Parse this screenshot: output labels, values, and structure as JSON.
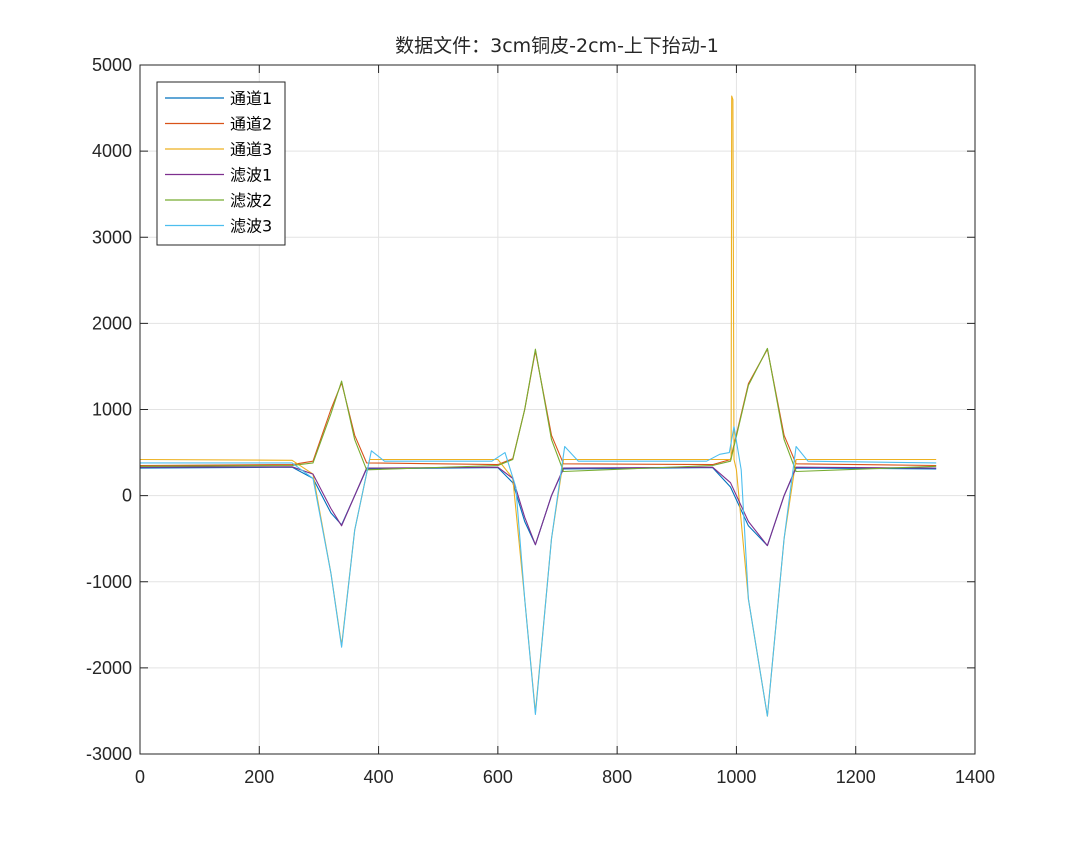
{
  "chart_data": {
    "type": "line",
    "title": "数据文件：3cm铜皮-2cm-上下抬动-1",
    "xlabel": "",
    "ylabel": "",
    "xlim": [
      0,
      1400
    ],
    "ylim": [
      -3000,
      5000
    ],
    "xticks": [
      0,
      200,
      400,
      600,
      800,
      1000,
      1200,
      1400
    ],
    "yticks": [
      -3000,
      -2000,
      -1000,
      0,
      1000,
      2000,
      3000,
      4000,
      5000
    ],
    "xtick_labels": [
      "0",
      "200",
      "400",
      "600",
      "800",
      "1000",
      "1200",
      "1400"
    ],
    "ytick_labels": [
      "-3000",
      "-2000",
      "-1000",
      "0",
      "1000",
      "2000",
      "3000",
      "4000",
      "5000"
    ],
    "grid": true,
    "legend_position": "top-left",
    "series": [
      {
        "name": "通道1",
        "color": "#0072BD",
        "x": [
          0,
          255,
          290,
          320,
          338,
          360,
          380,
          600,
          625,
          645,
          663,
          690,
          710,
          960,
          990,
          1020,
          1052,
          1080,
          1100,
          1335
        ],
        "y": [
          320,
          330,
          200,
          -200,
          -340,
          0,
          310,
          325,
          150,
          -300,
          -570,
          0,
          310,
          325,
          100,
          -350,
          -580,
          0,
          320,
          310
        ]
      },
      {
        "name": "通道2",
        "color": "#D95319",
        "x": [
          0,
          255,
          290,
          320,
          338,
          360,
          380,
          600,
          625,
          645,
          663,
          690,
          710,
          960,
          990,
          1020,
          1052,
          1080,
          1100,
          1335
        ],
        "y": [
          350,
          360,
          400,
          1000,
          1310,
          700,
          380,
          360,
          430,
          1000,
          1680,
          700,
          370,
          360,
          420,
          1300,
          1700,
          700,
          370,
          350
        ]
      },
      {
        "name": "通道3",
        "color": "#EDB120",
        "x": [
          0,
          255,
          290,
          320,
          338,
          360,
          385,
          600,
          625,
          645,
          663,
          690,
          710,
          985,
          991,
          992,
          994,
          996,
          1000,
          1020,
          1052,
          1080,
          1100,
          1335
        ],
        "y": [
          420,
          410,
          250,
          -900,
          -1740,
          -400,
          420,
          420,
          200,
          -1200,
          -2520,
          -500,
          420,
          420,
          420,
          4640,
          4600,
          420,
          300,
          -1200,
          -2560,
          -500,
          420,
          420
        ]
      },
      {
        "name": "滤波1",
        "color": "#7E2F8E",
        "x": [
          0,
          255,
          290,
          320,
          338,
          360,
          380,
          600,
          625,
          645,
          663,
          690,
          710,
          960,
          990,
          1020,
          1052,
          1080,
          1100,
          1335
        ],
        "y": [
          330,
          335,
          250,
          -150,
          -350,
          0,
          320,
          330,
          200,
          -250,
          -570,
          0,
          320,
          330,
          150,
          -300,
          -580,
          0,
          330,
          320
        ]
      },
      {
        "name": "滤波2",
        "color": "#77AC30",
        "x": [
          0,
          255,
          290,
          320,
          338,
          360,
          380,
          600,
          625,
          645,
          663,
          690,
          710,
          960,
          990,
          1020,
          1052,
          1080,
          1100,
          1335
        ],
        "y": [
          340,
          350,
          380,
          950,
          1330,
          650,
          300,
          350,
          420,
          1000,
          1700,
          650,
          280,
          350,
          400,
          1280,
          1710,
          650,
          280,
          340
        ]
      },
      {
        "name": "滤波3",
        "color": "#4DBEEE",
        "x": [
          0,
          255,
          290,
          320,
          338,
          360,
          388,
          410,
          590,
          612,
          630,
          645,
          663,
          690,
          712,
          735,
          950,
          972,
          988,
          996,
          1008,
          1020,
          1052,
          1080,
          1100,
          1120,
          1335
        ],
        "y": [
          380,
          380,
          200,
          -900,
          -1760,
          -400,
          520,
          400,
          400,
          500,
          100,
          -1200,
          -2540,
          -500,
          570,
          400,
          400,
          480,
          500,
          800,
          300,
          -1200,
          -2560,
          -500,
          570,
          400,
          380
        ]
      }
    ]
  }
}
